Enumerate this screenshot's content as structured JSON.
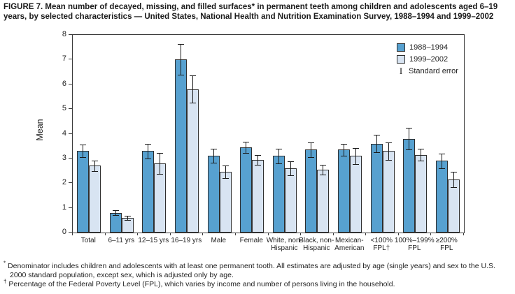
{
  "figure": {
    "title": "FIGURE 7. Mean number of decayed, missing, and filled surfaces* in permanent teeth among children and adolescents aged 6–19 years, by selected characteristics — United States, National Health and Nutrition Examination Survey, 1988–1994 and 1999–2002"
  },
  "footnotes": [
    {
      "marker": "*",
      "text": "Denominator includes children and adolescents with at least one permanent tooth. All estimates are adjusted by age (single years) and sex to the U.S. 2000 standard population, except sex, which is adjusted only by age."
    },
    {
      "marker": "†",
      "text": "Percentage of the Federal Poverty Level (FPL), which varies by income and number of persons living in the household."
    }
  ],
  "chart_data": {
    "type": "bar",
    "title": "",
    "xlabel": "",
    "ylabel": "Mean",
    "ylim": [
      0,
      8
    ],
    "yticks": [
      0,
      1,
      2,
      3,
      4,
      5,
      6,
      7,
      8
    ],
    "grid": false,
    "legend_position": "top-right",
    "legend": [
      {
        "label": "1988–1994",
        "swatch": "#57a1d0"
      },
      {
        "label": "1999–2002",
        "swatch": "#d8e4f2"
      },
      {
        "label": "Standard error",
        "swatch": null,
        "icon": "error-bar-icon"
      }
    ],
    "categories": [
      "Total",
      "6–11 yrs",
      "12–15 yrs",
      "16–19 yrs",
      "Male",
      "Female",
      "White, non-\nHispanic",
      "Black, non-\nHispanic",
      "Mexican-\nAmerican",
      "<100%\nFPL†",
      "100%–199%\nFPL",
      "≥200%\nFPL"
    ],
    "series": [
      {
        "name": "1988–1994",
        "color": "#57a1d0",
        "values": [
          3.3,
          0.8,
          3.3,
          7.0,
          3.1,
          3.45,
          3.1,
          3.35,
          3.35,
          3.6,
          3.8,
          2.9
        ],
        "standard_errors": [
          0.25,
          0.1,
          0.3,
          0.62,
          0.28,
          0.22,
          0.3,
          0.3,
          0.25,
          0.35,
          0.45,
          0.3
        ]
      },
      {
        "name": "1999–2002",
        "color": "#d8e4f2",
        "values": [
          2.7,
          0.6,
          2.8,
          5.8,
          2.45,
          2.95,
          2.6,
          2.55,
          3.1,
          3.3,
          3.15,
          2.15
        ],
        "standard_errors": [
          0.22,
          0.08,
          0.42,
          0.55,
          0.25,
          0.2,
          0.28,
          0.2,
          0.33,
          0.35,
          0.25,
          0.3
        ]
      }
    ]
  },
  "colors": {
    "bar_1988_1994": "#57a1d0",
    "bar_1999_2002": "#d8e4f2",
    "bar_border": "#2e2e2e",
    "axis": "#3a3a3a",
    "error_bar": "#1a1a1a",
    "text": "#1f1f1f",
    "background": "#ffffff"
  }
}
